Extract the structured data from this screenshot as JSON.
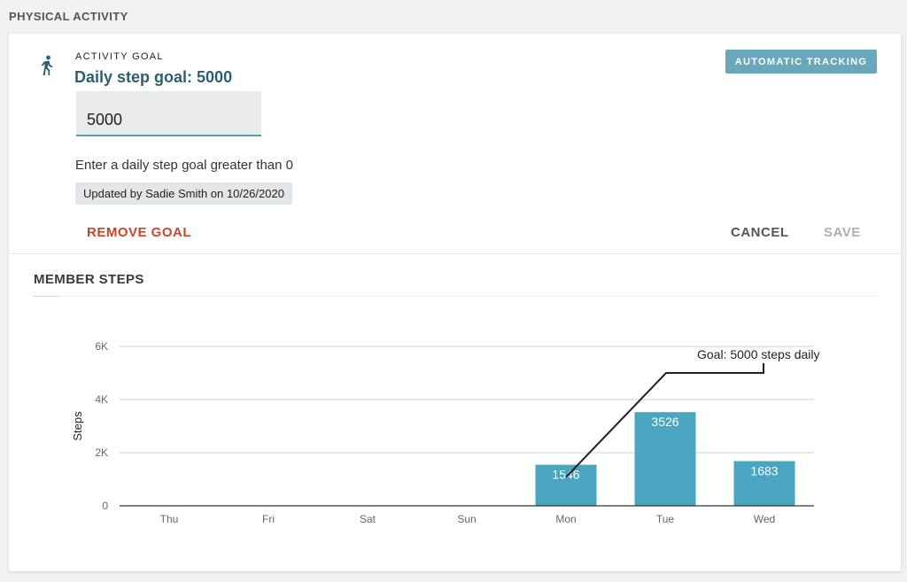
{
  "page": {
    "section_title": "PHYSICAL ACTIVITY"
  },
  "goal": {
    "icon": "walking-person-icon",
    "eyebrow": "ACTIVITY GOAL",
    "heading": "Daily step goal: 5000",
    "input_value": "5000",
    "helper": "Enter a daily step goal greater than 0",
    "updated": "Updated by Sadie Smith on 10/26/2020",
    "tracking_button": "AUTOMATIC TRACKING",
    "remove_button": "REMOVE GOAL",
    "cancel_button": "CANCEL",
    "save_button": "SAVE"
  },
  "steps": {
    "title": "MEMBER STEPS"
  },
  "colors": {
    "accent": "#2b6073",
    "bar": "#4aa5c0",
    "tracking_button": "#69a7bd",
    "remove": "#c9452a",
    "disabled": "#aab0b4"
  },
  "chart_data": {
    "type": "bar",
    "categories": [
      "Thu",
      "Fri",
      "Sat",
      "Sun",
      "Mon",
      "Tue",
      "Wed"
    ],
    "values": [
      0,
      0,
      0,
      0,
      1546,
      3526,
      1683
    ],
    "value_labels": [
      "",
      "",
      "",
      "",
      "1546",
      "3526",
      "1683"
    ],
    "ylabel": "Steps",
    "ylim": [
      0,
      6000
    ],
    "yticks": [
      0,
      2000,
      4000,
      6000
    ],
    "ytick_labels": [
      "0",
      "2K",
      "4K",
      "6K"
    ],
    "grid": true,
    "annotation": {
      "text": "Goal: 5000 steps daily",
      "value": 5000,
      "category": "Mon"
    }
  }
}
